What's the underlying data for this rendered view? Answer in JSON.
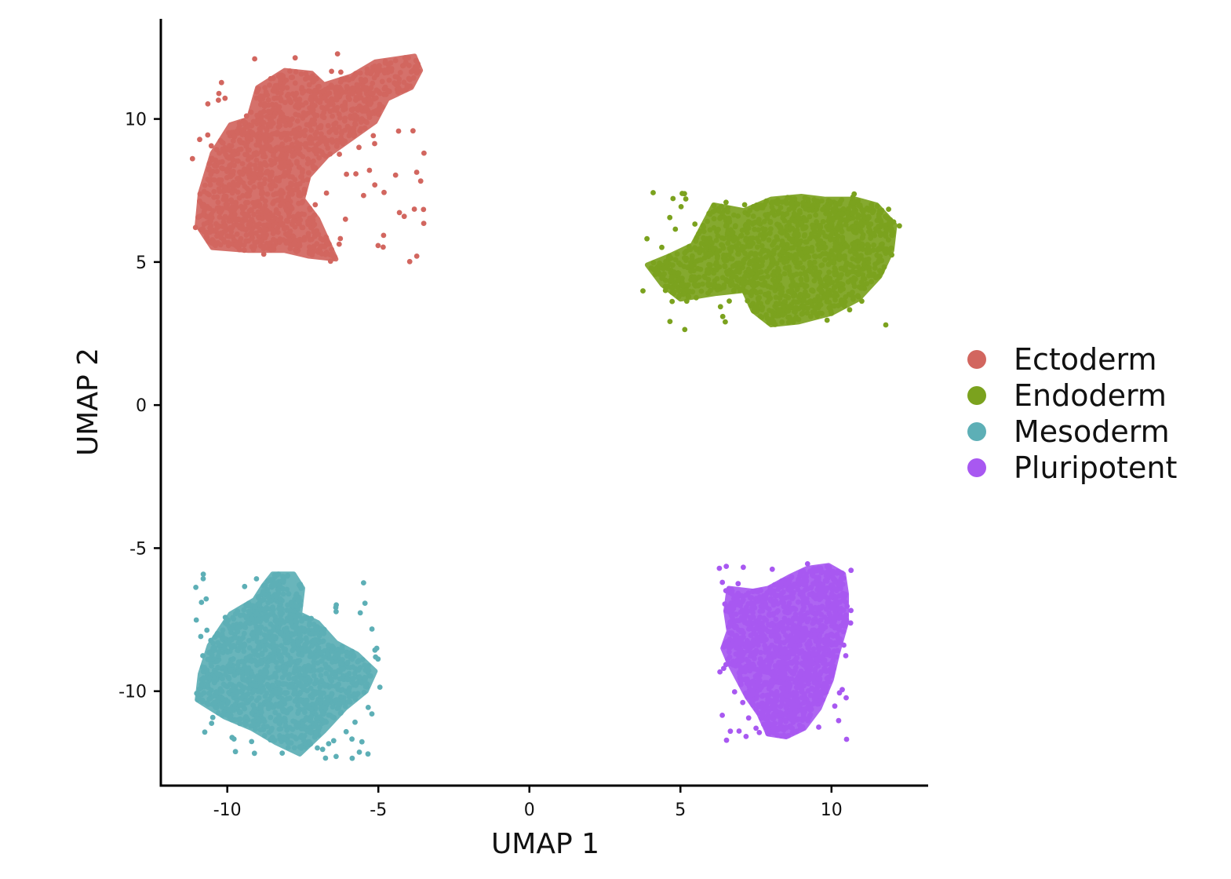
{
  "chart_data": {
    "type": "scatter",
    "title": "",
    "xlabel": "UMAP 1",
    "ylabel": "UMAP 2",
    "xlim": [
      -12.2,
      13.2
    ],
    "ylim": [
      -13.3,
      13.5
    ],
    "x_ticks": [
      -10,
      -5,
      0,
      5,
      10
    ],
    "x_tick_labels": [
      "-10",
      "-5",
      "0",
      "5",
      "10"
    ],
    "y_ticks": [
      -10,
      -5,
      0,
      5,
      10
    ],
    "y_tick_labels": [
      "-10",
      "-5",
      "0",
      "5",
      "10"
    ],
    "grid": false,
    "legend_position": "right",
    "series": [
      {
        "name": "Ectoderm",
        "color": "#D2665F",
        "x_range": [
          -11.0,
          -3.6
        ],
        "y_range": [
          4.9,
          12.3
        ],
        "outline": [
          [
            -10.9,
            7.4
          ],
          [
            -10.5,
            8.8
          ],
          [
            -9.9,
            9.8
          ],
          [
            -9.3,
            10.0
          ],
          [
            -9.0,
            11.1
          ],
          [
            -8.1,
            11.7
          ],
          [
            -7.2,
            11.6
          ],
          [
            -6.8,
            11.2
          ],
          [
            -5.9,
            11.5
          ],
          [
            -5.1,
            12.0
          ],
          [
            -3.8,
            12.2
          ],
          [
            -3.6,
            11.7
          ],
          [
            -3.9,
            11.1
          ],
          [
            -4.7,
            10.7
          ],
          [
            -5.1,
            9.9
          ],
          [
            -5.9,
            9.3
          ],
          [
            -6.7,
            8.7
          ],
          [
            -7.3,
            8.0
          ],
          [
            -7.5,
            7.2
          ],
          [
            -7.0,
            6.5
          ],
          [
            -6.4,
            5.1
          ],
          [
            -7.3,
            5.2
          ],
          [
            -8.1,
            5.4
          ],
          [
            -9.3,
            5.4
          ],
          [
            -10.5,
            5.5
          ],
          [
            -11.0,
            6.3
          ]
        ]
      },
      {
        "name": "Endoderm",
        "color": "#7BA21E",
        "x_range": [
          3.9,
          12.1
        ],
        "y_range": [
          2.7,
          7.4
        ],
        "outline": [
          [
            3.9,
            4.9
          ],
          [
            4.6,
            5.2
          ],
          [
            5.4,
            5.6
          ],
          [
            5.8,
            6.4
          ],
          [
            6.1,
            7.0
          ],
          [
            7.1,
            6.8
          ],
          [
            8.0,
            7.2
          ],
          [
            9.0,
            7.3
          ],
          [
            9.8,
            7.2
          ],
          [
            10.8,
            7.2
          ],
          [
            11.5,
            7.0
          ],
          [
            12.1,
            6.3
          ],
          [
            12.0,
            5.4
          ],
          [
            11.6,
            4.5
          ],
          [
            10.9,
            3.7
          ],
          [
            10.0,
            3.2
          ],
          [
            8.9,
            2.9
          ],
          [
            8.0,
            2.8
          ],
          [
            7.4,
            3.3
          ],
          [
            7.1,
            4.0
          ],
          [
            6.2,
            3.9
          ],
          [
            5.0,
            3.7
          ],
          [
            4.4,
            4.2
          ]
        ]
      },
      {
        "name": "Mesoderm",
        "color": "#5DAFB6",
        "x_range": [
          -11.0,
          -5.1
        ],
        "y_range": [
          -12.2,
          -5.9
        ],
        "outline": [
          [
            -8.5,
            -5.9
          ],
          [
            -7.8,
            -5.9
          ],
          [
            -7.5,
            -6.4
          ],
          [
            -7.6,
            -7.3
          ],
          [
            -7.0,
            -7.6
          ],
          [
            -6.4,
            -8.3
          ],
          [
            -5.7,
            -8.7
          ],
          [
            -5.1,
            -9.3
          ],
          [
            -5.4,
            -10.0
          ],
          [
            -6.1,
            -10.6
          ],
          [
            -6.8,
            -11.4
          ],
          [
            -7.6,
            -12.2
          ],
          [
            -8.4,
            -11.8
          ],
          [
            -9.2,
            -11.3
          ],
          [
            -10.1,
            -10.9
          ],
          [
            -11.0,
            -10.3
          ],
          [
            -10.9,
            -9.4
          ],
          [
            -10.6,
            -8.4
          ],
          [
            -9.9,
            -7.3
          ],
          [
            -9.1,
            -6.8
          ],
          [
            -8.8,
            -6.3
          ]
        ]
      },
      {
        "name": "Pluripotent",
        "color": "#A858F1",
        "x_range": [
          6.4,
          10.6
        ],
        "y_range": [
          -11.6,
          -5.4
        ],
        "outline": [
          [
            6.6,
            -6.4
          ],
          [
            7.4,
            -6.5
          ],
          [
            7.9,
            -6.4
          ],
          [
            8.6,
            -6.0
          ],
          [
            9.2,
            -5.7
          ],
          [
            9.9,
            -5.6
          ],
          [
            10.4,
            -5.9
          ],
          [
            10.5,
            -6.6
          ],
          [
            10.5,
            -7.6
          ],
          [
            10.2,
            -8.7
          ],
          [
            10.0,
            -9.6
          ],
          [
            9.6,
            -10.6
          ],
          [
            9.1,
            -11.3
          ],
          [
            8.5,
            -11.6
          ],
          [
            7.9,
            -11.5
          ],
          [
            7.6,
            -10.8
          ],
          [
            7.2,
            -10.2
          ],
          [
            6.9,
            -9.6
          ],
          [
            6.6,
            -9.0
          ],
          [
            6.4,
            -8.5
          ],
          [
            6.6,
            -7.9
          ],
          [
            6.5,
            -7.2
          ]
        ]
      }
    ]
  },
  "legend": {
    "items": [
      {
        "label": "Ectoderm",
        "color": "#D2665F"
      },
      {
        "label": "Endoderm",
        "color": "#7BA21E"
      },
      {
        "label": "Mesoderm",
        "color": "#5DAFB6"
      },
      {
        "label": "Pluripotent",
        "color": "#A858F1"
      }
    ]
  }
}
